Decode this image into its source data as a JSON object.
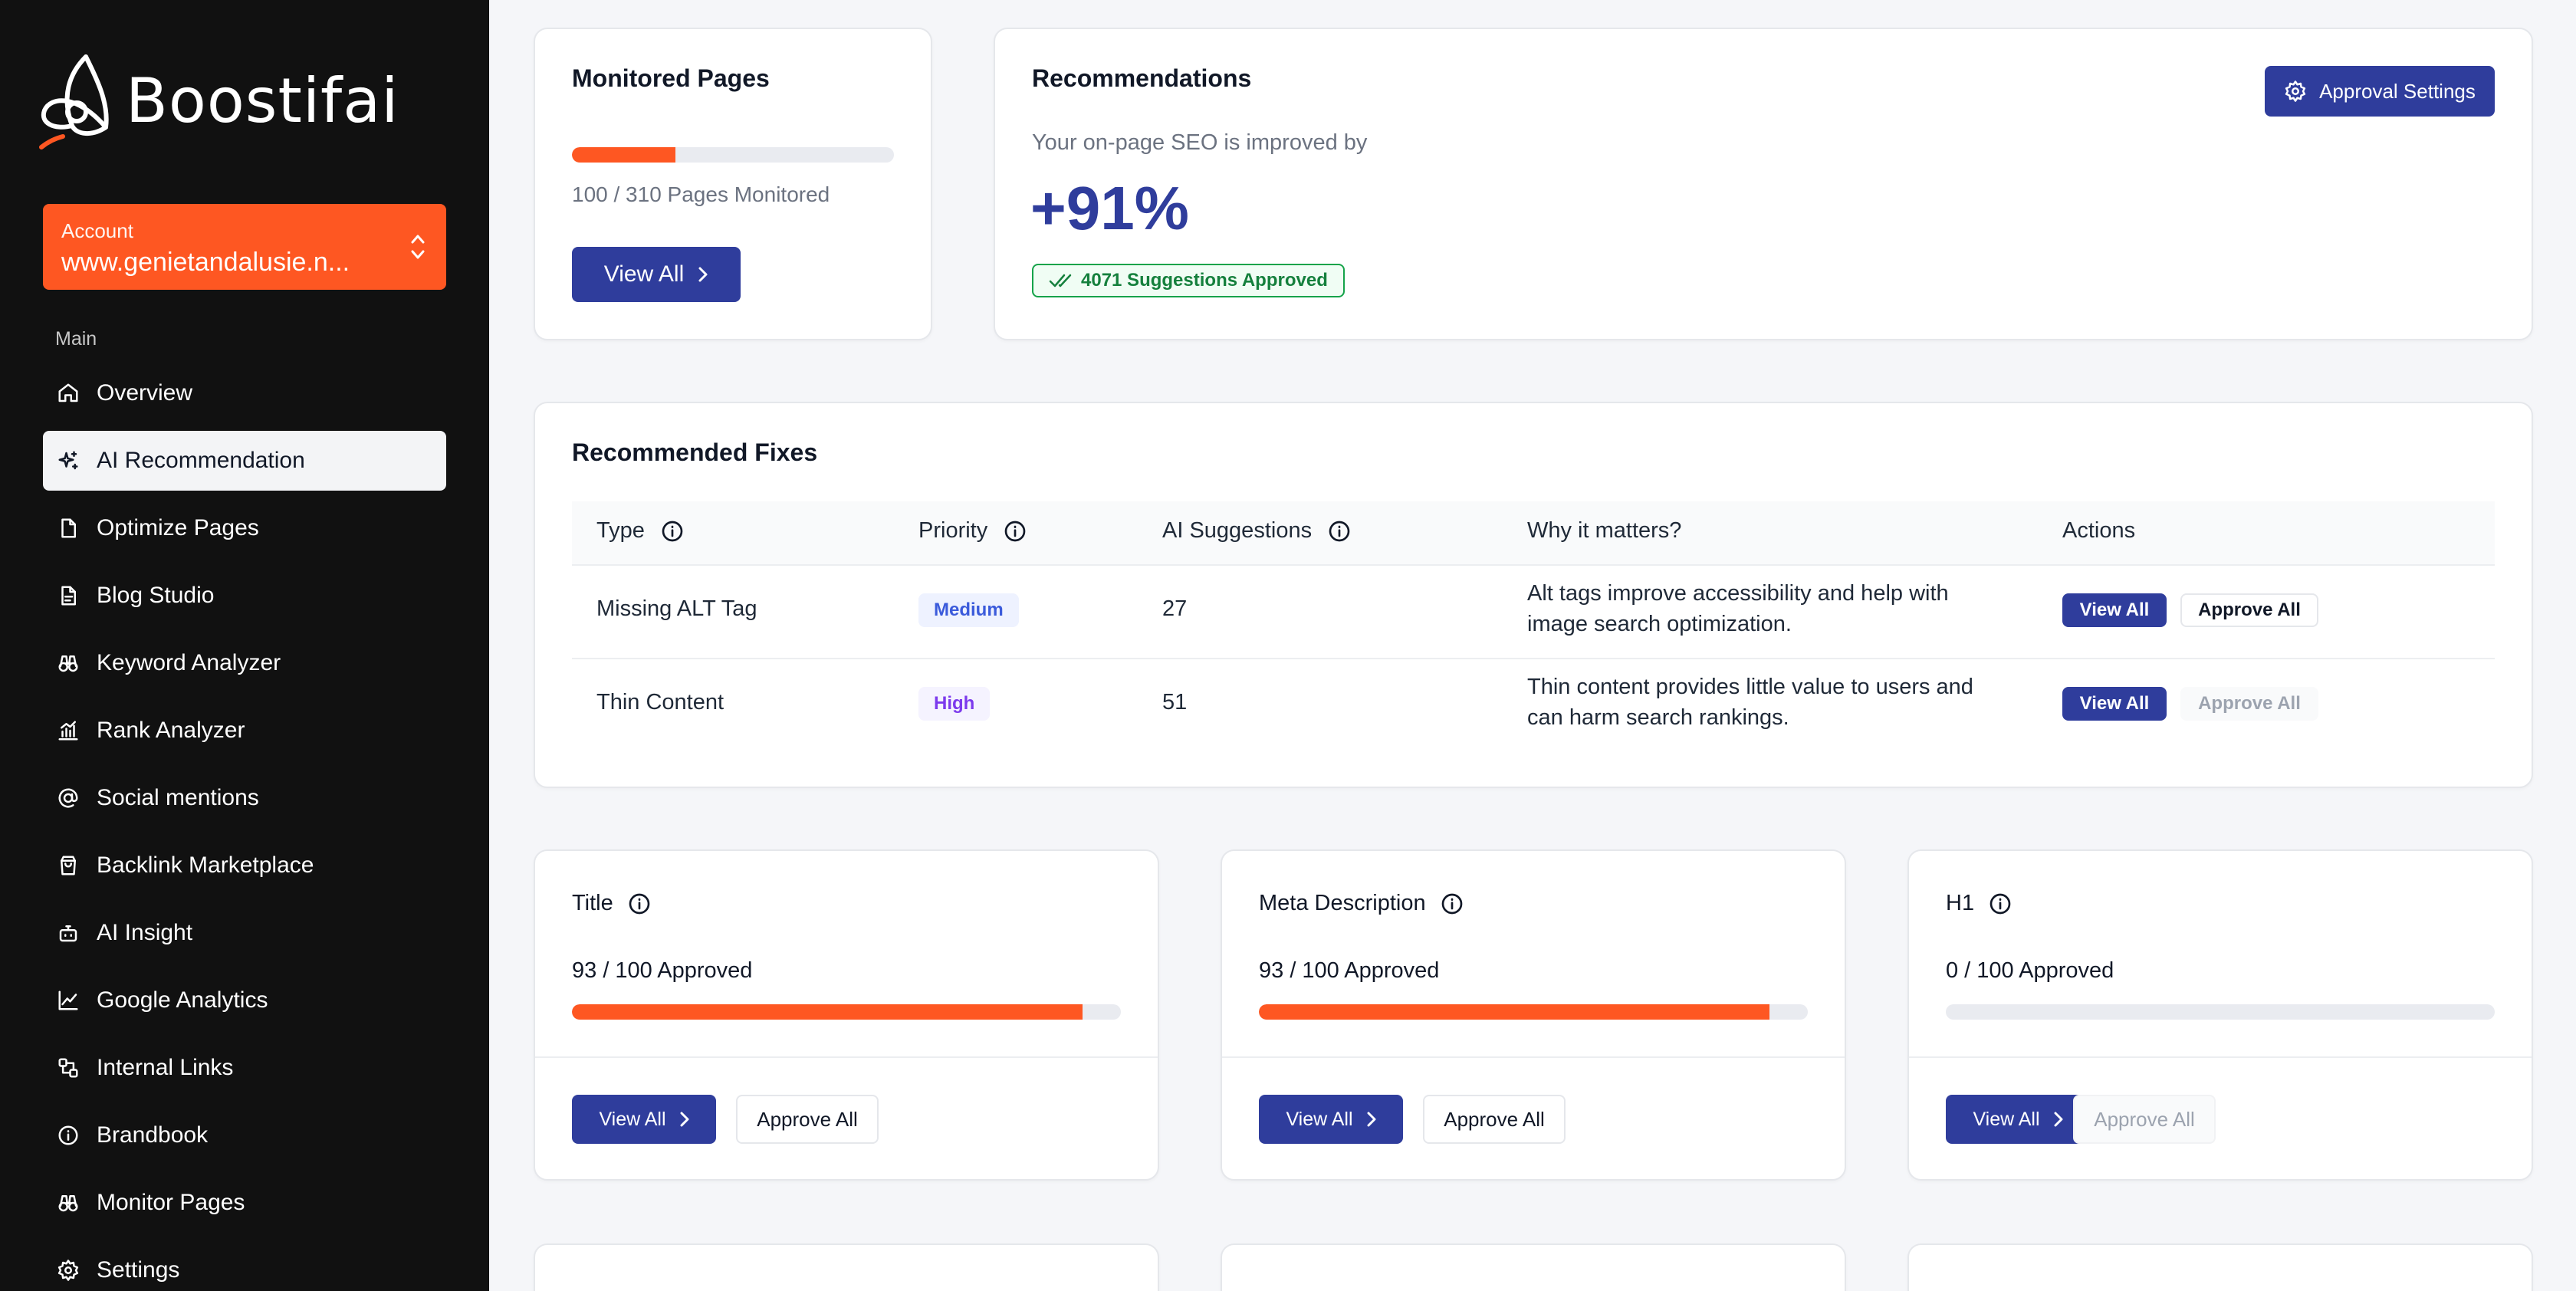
{
  "brand": {
    "name": "Boostifai",
    "accent": "#fe5722",
    "primary": "#2f3d9c"
  },
  "account": {
    "label": "Account",
    "value": "www.genietandalusie.n..."
  },
  "sidebar": {
    "section_label": "Main",
    "items": [
      {
        "label": "Overview",
        "icon": "home-icon"
      },
      {
        "label": "AI Recommendation",
        "icon": "sparkles-icon",
        "active": true
      },
      {
        "label": "Optimize Pages",
        "icon": "file-icon"
      },
      {
        "label": "Blog Studio",
        "icon": "document-icon"
      },
      {
        "label": "Keyword Analyzer",
        "icon": "binoculars-icon"
      },
      {
        "label": "Rank Analyzer",
        "icon": "chart-bar-icon"
      },
      {
        "label": "Social mentions",
        "icon": "at-icon"
      },
      {
        "label": "Backlink Marketplace",
        "icon": "shopping-bag-icon"
      },
      {
        "label": "AI Insight",
        "icon": "bot-icon"
      },
      {
        "label": "Google Analytics",
        "icon": "line-chart-icon"
      },
      {
        "label": "Internal Links",
        "icon": "link-icon"
      },
      {
        "label": "Brandbook",
        "icon": "info-icon"
      },
      {
        "label": "Monitor Pages",
        "icon": "binoculars-icon"
      },
      {
        "label": "Settings",
        "icon": "gear-icon"
      }
    ]
  },
  "monitored": {
    "title": "Monitored Pages",
    "progress": 0.3226,
    "count_text": "100 / 310 Pages Monitored",
    "view_all": "View All"
  },
  "recommendations": {
    "title": "Recommendations",
    "settings_button": "Approval Settings",
    "subtitle": "Your on-page SEO is improved by",
    "improvement": "+91%",
    "approved_badge": "4071 Suggestions Approved"
  },
  "fixes": {
    "title": "Recommended Fixes",
    "headers": {
      "type": "Type",
      "priority": "Priority",
      "suggestions": "AI Suggestions",
      "why": "Why it matters?",
      "actions": "Actions"
    },
    "rows": [
      {
        "type": "Missing ALT Tag",
        "priority": "Medium",
        "suggestions": "27",
        "why1": "Alt tags improve accessibility and help with",
        "why2": "image search optimization.",
        "view": "View All",
        "approve": "Approve All"
      },
      {
        "type": "Thin Content",
        "priority": "High",
        "suggestions": "51",
        "why1": "Thin content provides little value to users and",
        "why2": "can harm search rankings.",
        "view": "View All",
        "approve": "Approve All"
      }
    ]
  },
  "metrics": [
    {
      "title": "Title",
      "approved_text": "93 / 100 Approved",
      "progress": 0.93,
      "view": "View All",
      "approve": "Approve All"
    },
    {
      "title": "Meta Description",
      "approved_text": "93 / 100 Approved",
      "progress": 0.93,
      "view": "View All",
      "approve": "Approve All"
    },
    {
      "title": "H1",
      "approved_text": "0 / 100 Approved",
      "progress": 0,
      "view": "View All",
      "approve": "Approve All"
    }
  ]
}
